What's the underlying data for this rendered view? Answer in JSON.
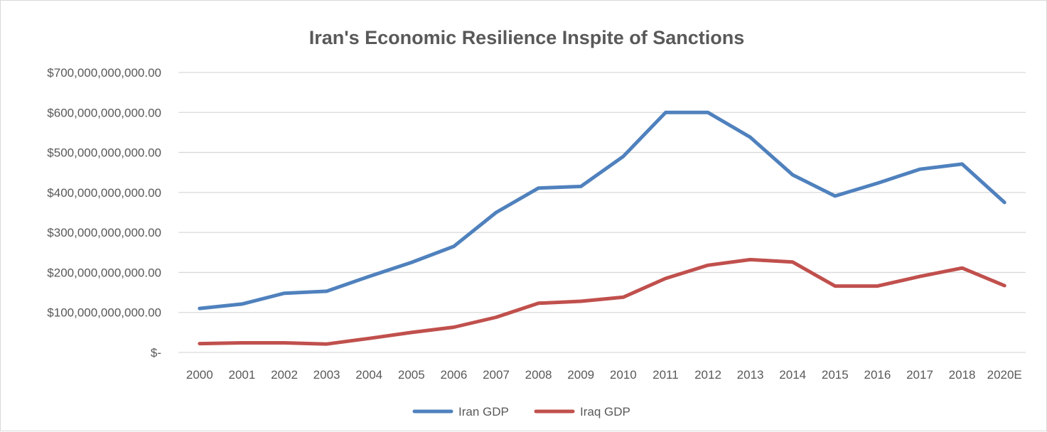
{
  "chart_data": {
    "type": "line",
    "title": "Iran's Economic Resilience Inspite of Sanctions",
    "xlabel": "",
    "ylabel": "",
    "categories": [
      "2000",
      "2001",
      "2002",
      "2003",
      "2004",
      "2005",
      "2006",
      "2007",
      "2008",
      "2009",
      "2010",
      "2011",
      "2012",
      "2013",
      "2014",
      "2015",
      "2016",
      "2017",
      "2018",
      "2020E"
    ],
    "ylim": [
      0,
      700000000000
    ],
    "y_ticks": [
      0,
      100000000000,
      200000000000,
      300000000000,
      400000000000,
      500000000000,
      600000000000,
      700000000000
    ],
    "y_tick_labels": [
      "$-",
      "$100,000,000,000.00",
      "$200,000,000,000.00",
      "$300,000,000,000.00",
      "$400,000,000,000.00",
      "$500,000,000,000.00",
      "$600,000,000,000.00",
      "$700,000,000,000.00"
    ],
    "grid": true,
    "legend_position": "bottom",
    "series": [
      {
        "name": "Iran GDP",
        "color": "#4f81bd",
        "values": [
          110000000000,
          121000000000,
          148000000000,
          153000000000,
          190000000000,
          225000000000,
          265000000000,
          350000000000,
          411000000000,
          415000000000,
          490000000000,
          600000000000,
          600000000000,
          538000000000,
          444000000000,
          391000000000,
          423000000000,
          458000000000,
          471000000000,
          375000000000
        ]
      },
      {
        "name": "Iraq GDP",
        "color": "#c0504d",
        "values": [
          22000000000,
          24000000000,
          24000000000,
          21000000000,
          35000000000,
          50000000000,
          63000000000,
          88000000000,
          123000000000,
          128000000000,
          138000000000,
          185000000000,
          218000000000,
          232000000000,
          226000000000,
          166000000000,
          166000000000,
          190000000000,
          211000000000,
          167000000000
        ]
      }
    ]
  }
}
